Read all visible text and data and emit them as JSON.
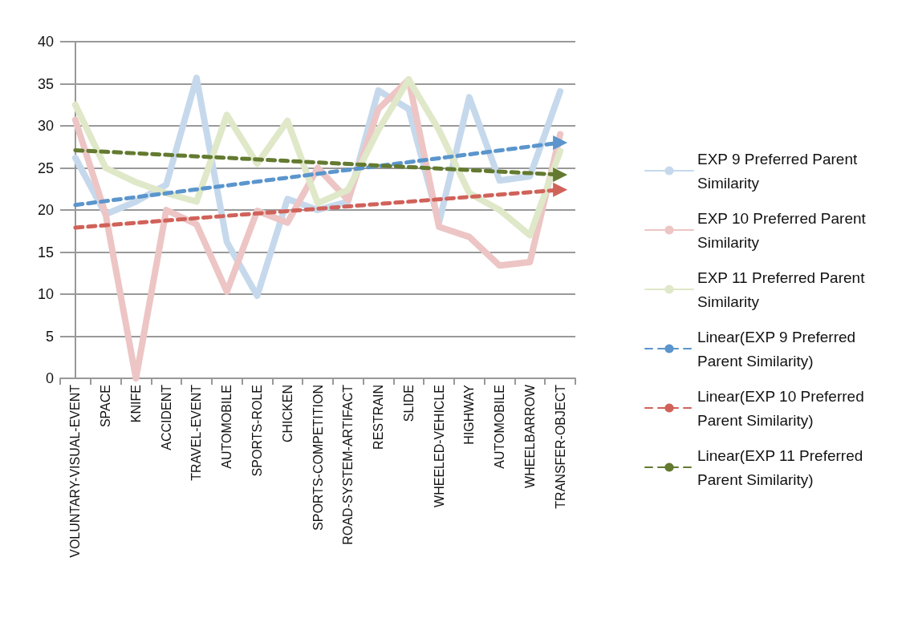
{
  "chart_data": {
    "type": "line",
    "categories": [
      "VOLUNTARY-VISUAL-EVENT",
      "SPACE",
      "KNIFE",
      "ACCIDENT",
      "TRAVEL-EVENT",
      "AUTOMOBILE",
      "SPORTS-ROLE",
      "CHICKEN",
      "SPORTS-COMPETITION",
      "ROAD-SYSTEM-ARTIFACT",
      "RESTRAIN",
      "SLIDE",
      "WHEELED-VEHICLE",
      "HIGHWAY",
      "AUTOMOBILE",
      "WHEELBARROW",
      "TRANSFER-OBJECT"
    ],
    "series": [
      {
        "name": "EXP 9 Preferred Parent Similarity",
        "color": "#c6d9ec",
        "values": [
          26.2,
          19.5,
          21,
          23,
          35.7,
          16.2,
          9.8,
          21.3,
          20,
          21,
          34.2,
          32,
          18.5,
          33.4,
          23.5,
          24,
          34.1
        ]
      },
      {
        "name": "EXP 10 Preferred Parent Similarity",
        "color": "#edc5c5",
        "values": [
          30.7,
          19.5,
          0,
          20,
          18.3,
          10.3,
          19.9,
          18.5,
          25,
          21.2,
          32,
          35.5,
          18,
          16.8,
          13.4,
          13.8,
          29
        ]
      },
      {
        "name": "EXP 11 Preferred Parent Similarity",
        "color": "#dfe8c8",
        "values": [
          32.5,
          25,
          23.3,
          22,
          21,
          31.3,
          25.5,
          30.6,
          20.8,
          22.4,
          29.5,
          35.5,
          29.5,
          22,
          20,
          17,
          27
        ]
      },
      {
        "name": "Linear(EXP 9 Preferred Parent Similarity)",
        "color": "#5b95cc",
        "line_style": "dashed",
        "marker": "triangle",
        "x": [
          "VOLUNTARY-VISUAL-EVENT",
          "TRANSFER-OBJECT"
        ],
        "values": [
          20.6,
          28
        ]
      },
      {
        "name": "Linear(EXP 10 Preferred Parent Similarity)",
        "color": "#d0625a",
        "line_style": "dashed",
        "marker": "triangle",
        "x": [
          "VOLUNTARY-VISUAL-EVENT",
          "TRANSFER-OBJECT"
        ],
        "values": [
          17.9,
          22.4
        ]
      },
      {
        "name": "Linear(EXP 11 Preferred Parent Similarity)",
        "color": "#637a30",
        "line_style": "dashed",
        "marker": "triangle",
        "x": [
          "VOLUNTARY-VISUAL-EVENT",
          "TRANSFER-OBJECT"
        ],
        "values": [
          27.1,
          24.2
        ]
      }
    ],
    "ylim": [
      0,
      40
    ],
    "yticks": [
      0,
      5,
      10,
      15,
      20,
      25,
      30,
      35,
      40
    ],
    "grid": "y",
    "legend": "right",
    "marker": "none"
  }
}
